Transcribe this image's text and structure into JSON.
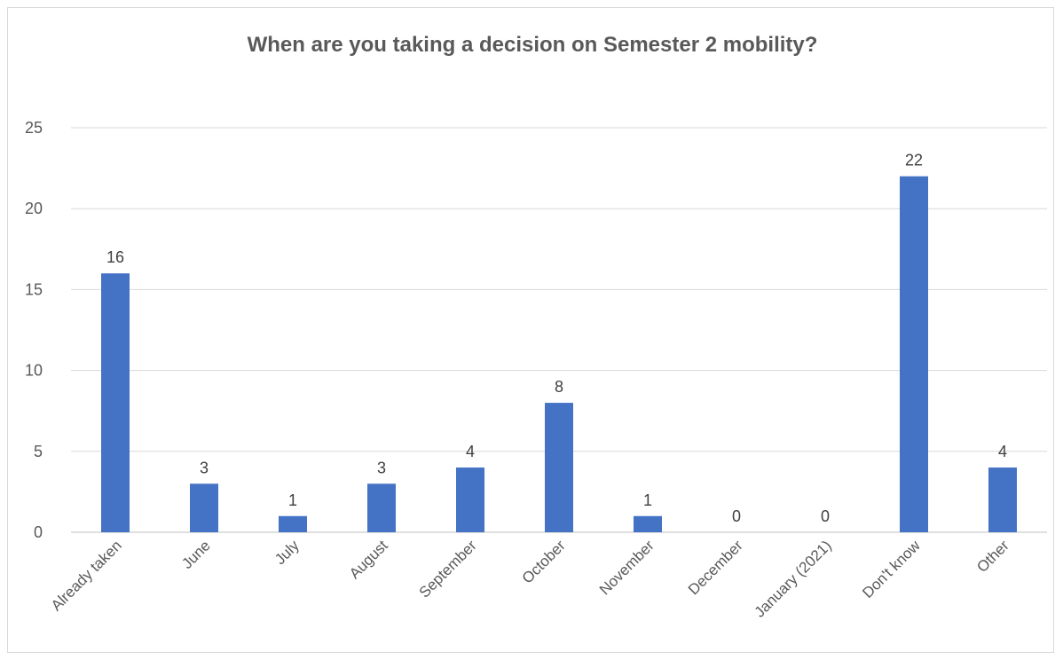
{
  "chart_data": {
    "type": "bar",
    "title": "When are you taking a decision on Semester 2 mobility?",
    "categories": [
      "Already taken",
      "June",
      "July",
      "August",
      "September",
      "October",
      "November",
      "December",
      "January (2021)",
      "Don't know",
      "Other"
    ],
    "values": [
      16,
      3,
      1,
      3,
      4,
      8,
      1,
      0,
      0,
      22,
      4
    ],
    "yticks": [
      0,
      5,
      10,
      15,
      20,
      25
    ],
    "ylim": [
      0,
      25
    ],
    "bar_color": "#4472c4",
    "grid": true,
    "legend": "none"
  }
}
